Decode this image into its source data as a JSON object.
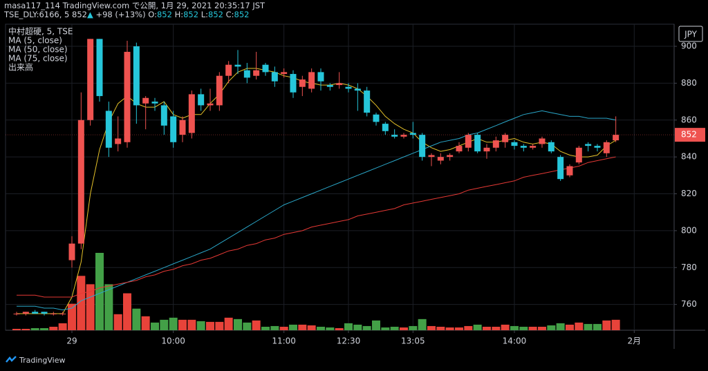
{
  "header": {
    "publisher": "masa117_114 TradingView.com で公開, 1月 29, 2021 20:35:17 JST",
    "symbol": "TSE_DLY:6166, 5",
    "price": 852,
    "arrow": "▲",
    "change": "+98 (+13%)",
    "ohlc": [
      {
        "label": "O:",
        "value": 852
      },
      {
        "label": "H:",
        "value": 852
      },
      {
        "label": "L:",
        "value": 852
      },
      {
        "label": "C:",
        "value": 852
      }
    ]
  },
  "footer": {
    "brand": "TradingView"
  },
  "chart_data": {
    "type": "candlestick",
    "name": "中村超硬, 5, TSE",
    "currency": "JPY",
    "categories": [
      null,
      null,
      null,
      null,
      null,
      null,
      "29",
      null,
      null,
      null,
      null,
      null,
      null,
      null,
      null,
      null,
      null,
      "10:00",
      null,
      null,
      null,
      null,
      null,
      null,
      null,
      null,
      null,
      null,
      null,
      "11:00",
      null,
      null,
      null,
      null,
      null,
      null,
      "12:30",
      null,
      null,
      null,
      null,
      null,
      null,
      "13:05",
      null,
      null,
      null,
      null,
      null,
      null,
      null,
      null,
      null,
      null,
      "14:00",
      null,
      null,
      null,
      null,
      null,
      null,
      null,
      null,
      null,
      null,
      null,
      null,
      "2月"
    ],
    "open": [
      755,
      755,
      756,
      756,
      755,
      755,
      784,
      793,
      860,
      904,
      865,
      847,
      848,
      900,
      869,
      870,
      868,
      862,
      852,
      853,
      874,
      868,
      868,
      884,
      890,
      887,
      884,
      890,
      886,
      885,
      885,
      878,
      877,
      886,
      879,
      879,
      878,
      877,
      876,
      863,
      858,
      852,
      851,
      853,
      852,
      840,
      838,
      840,
      843,
      845,
      852,
      843,
      845,
      848,
      848,
      846,
      845,
      847,
      848,
      840,
      830,
      837,
      847,
      846,
      842,
      849,
      null,
      null
    ],
    "high": [
      756,
      756,
      757,
      756,
      756,
      756,
      797,
      875,
      904,
      904,
      870,
      862,
      903,
      902,
      873,
      872,
      870,
      865,
      862,
      876,
      877,
      877,
      886,
      892,
      898,
      891,
      897,
      891,
      889,
      888,
      887,
      884,
      888,
      888,
      880,
      886,
      880,
      880,
      878,
      864,
      859,
      855,
      853,
      859,
      853,
      842,
      842,
      842,
      848,
      853,
      853,
      847,
      851,
      853,
      849,
      847,
      847,
      851,
      849,
      841,
      836,
      846,
      848,
      847,
      849,
      862,
      null,
      null
    ],
    "low": [
      754,
      754,
      755,
      754,
      754,
      754,
      780,
      790,
      857,
      870,
      840,
      843,
      845,
      858,
      855,
      865,
      852,
      845,
      848,
      850,
      865,
      865,
      865,
      880,
      885,
      880,
      882,
      884,
      878,
      883,
      872,
      873,
      875,
      876,
      876,
      877,
      875,
      865,
      862,
      857,
      852,
      850,
      850,
      850,
      838,
      835,
      836,
      838,
      842,
      843,
      842,
      839,
      843,
      845,
      844,
      843,
      844,
      845,
      842,
      827,
      829,
      836,
      843,
      843,
      840,
      848,
      null,
      null
    ],
    "close": [
      755,
      756,
      755,
      755,
      755,
      755,
      793,
      860,
      904,
      873,
      845,
      850,
      897,
      868,
      872,
      869,
      857,
      848,
      860,
      874,
      868,
      869,
      884,
      890,
      889,
      883,
      887,
      886,
      881,
      886,
      875,
      882,
      886,
      881,
      878,
      880,
      877,
      876,
      864,
      859,
      854,
      851,
      852,
      852,
      840,
      841,
      840,
      841,
      846,
      852,
      843,
      845,
      849,
      852,
      846,
      845,
      846,
      850,
      843,
      828,
      835,
      845,
      846,
      845,
      848,
      852,
      null,
      null
    ],
    "up_color": "#ef5350",
    "down_color": "#26c6da",
    "ylim": [
      746,
      912
    ],
    "yticks": [
      760,
      780,
      800,
      820,
      840,
      860,
      880,
      900
    ],
    "grid": true,
    "last_price": 852,
    "ma": [
      {
        "name": "MA (5, close)",
        "color": "#e6c229",
        "values": [
          755,
          755,
          755,
          755,
          755,
          755,
          764,
          783,
          820,
          844,
          859,
          869,
          873,
          869,
          867,
          867,
          870,
          863,
          861,
          863,
          863,
          869,
          874,
          881,
          886,
          888,
          888,
          887,
          886,
          884,
          883,
          881,
          880,
          879,
          879,
          880,
          879,
          877,
          873,
          868,
          862,
          858,
          855,
          853,
          848,
          845,
          843,
          844,
          846,
          848,
          850,
          848,
          848,
          849,
          850,
          848,
          847,
          848,
          847,
          843,
          841,
          840,
          840,
          841,
          846,
          849,
          null,
          null
        ]
      },
      {
        "name": "MA (50, close)",
        "color": "#2aa7c9",
        "values": [
          759,
          759,
          759,
          758,
          758,
          757,
          758,
          762,
          764,
          766,
          768,
          770,
          772,
          774,
          776,
          778,
          780,
          782,
          784,
          786,
          788,
          790,
          793,
          796,
          799,
          802,
          805,
          808,
          811,
          814,
          816,
          818,
          820,
          822,
          824,
          826,
          828,
          830,
          832,
          834,
          836,
          838,
          840,
          842,
          844,
          846,
          848,
          849,
          850,
          852,
          853,
          855,
          857,
          859,
          861,
          863,
          864,
          865,
          864,
          863,
          862,
          862,
          861,
          861,
          861,
          860,
          null,
          null
        ]
      },
      {
        "name": "MA (75, close)",
        "color": "#e53935",
        "values": [
          765,
          765,
          765,
          764,
          764,
          764,
          764,
          766,
          767,
          769,
          770,
          771,
          772,
          773,
          775,
          776,
          778,
          779,
          781,
          782,
          784,
          785,
          787,
          789,
          790,
          792,
          793,
          795,
          796,
          798,
          799,
          800,
          802,
          803,
          804,
          805,
          806,
          808,
          809,
          810,
          811,
          812,
          814,
          815,
          816,
          817,
          818,
          819,
          820,
          822,
          823,
          824,
          825,
          826,
          827,
          829,
          830,
          831,
          832,
          833,
          834,
          835,
          837,
          838,
          839,
          840,
          null,
          null
        ]
      }
    ],
    "volume": {
      "name": "出来高",
      "up_color": "#e8433a",
      "down_color": "#43a047",
      "values": [
        2,
        2,
        3,
        3,
        5,
        10,
        38,
        78,
        66,
        111,
        66,
        23,
        53,
        31,
        20,
        11,
        15,
        18,
        15,
        15,
        13,
        12,
        12,
        18,
        16,
        11,
        14,
        5,
        6,
        5,
        8,
        8,
        7,
        5,
        4,
        3,
        10,
        8,
        6,
        14,
        4,
        5,
        4,
        6,
        16,
        6,
        5,
        4,
        4,
        6,
        8,
        5,
        5,
        8,
        6,
        5,
        5,
        5,
        7,
        10,
        8,
        11,
        9,
        9,
        14,
        15,
        null,
        null
      ]
    }
  }
}
